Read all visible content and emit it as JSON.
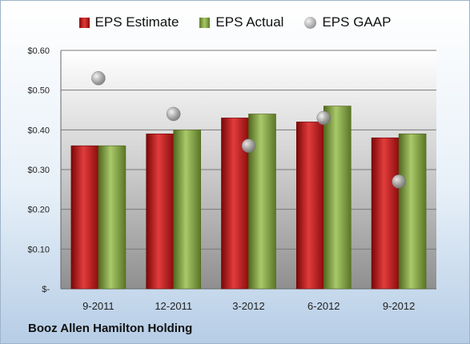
{
  "chart_data": {
    "type": "bar",
    "categories": [
      "9-2011",
      "12-2011",
      "3-2012",
      "6-2012",
      "9-2012"
    ],
    "series": [
      {
        "name": "EPS Estimate",
        "kind": "bar",
        "color": "#c81e1e",
        "values": [
          0.36,
          0.39,
          0.43,
          0.42,
          0.38
        ]
      },
      {
        "name": "EPS Actual",
        "kind": "bar",
        "color": "#8db04a",
        "values": [
          0.36,
          0.4,
          0.44,
          0.46,
          0.39
        ]
      },
      {
        "name": "EPS GAAP",
        "kind": "marker",
        "color": "#b0b0b0",
        "values": [
          0.53,
          0.44,
          0.36,
          0.43,
          0.27
        ]
      }
    ],
    "y_ticks": [
      "$-",
      "$0.10",
      "$0.20",
      "$0.30",
      "$0.40",
      "$0.50",
      "$0.60"
    ],
    "ylim": [
      0,
      0.6
    ],
    "grid": true,
    "legend_position": "top",
    "caption": "Booz Allen Hamilton Holding"
  }
}
